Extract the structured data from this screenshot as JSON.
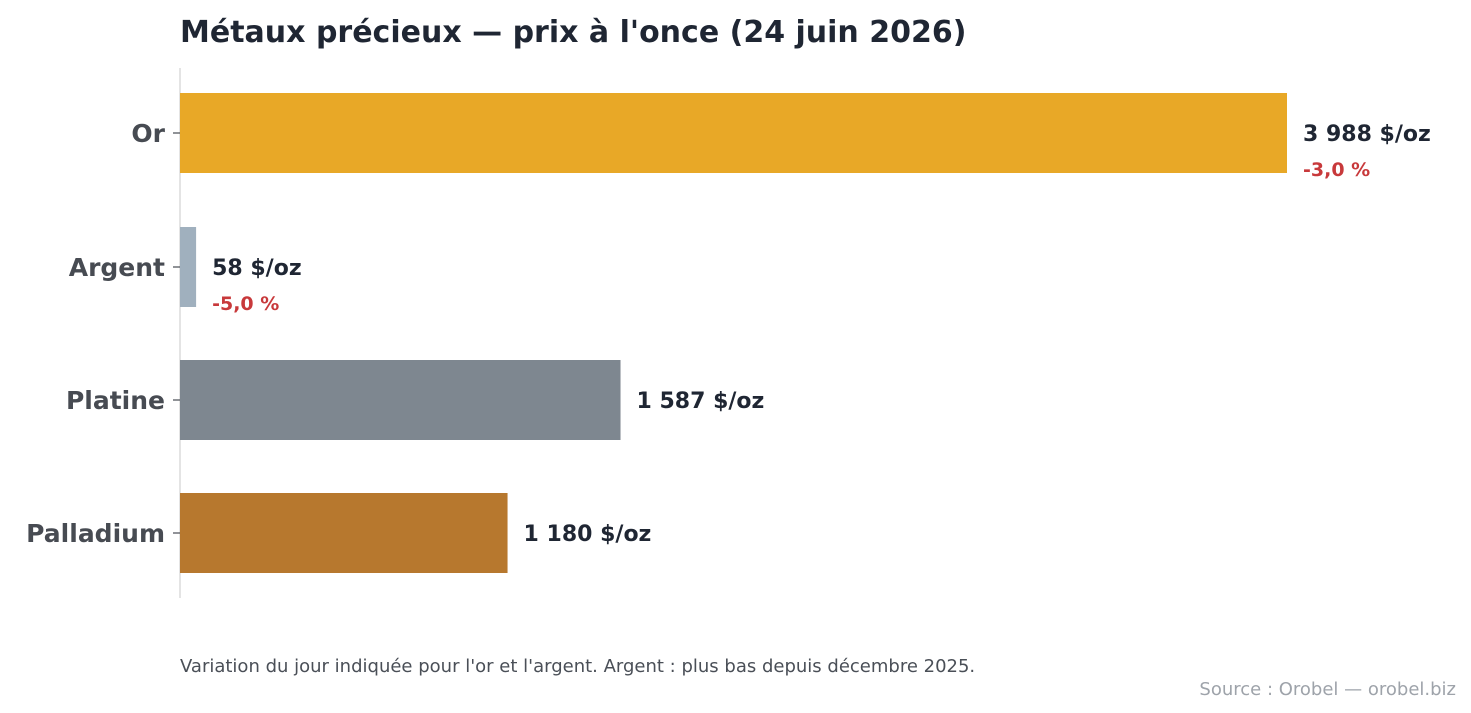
{
  "chart_data": {
    "type": "bar",
    "orientation": "horizontal",
    "title": "Métaux précieux — prix à l'once (24 juin 2026)",
    "unit": "$/oz",
    "xlim": [
      0,
      4250
    ],
    "categories": [
      "Or",
      "Argent",
      "Platine",
      "Palladium"
    ],
    "values": [
      3988,
      58,
      1587,
      1180
    ],
    "value_labels": [
      "3 988 $/oz",
      "58 $/oz",
      "1 587 $/oz",
      "1 180 $/oz"
    ],
    "changes": [
      "-3,0 %",
      "-5,0 %",
      null,
      null
    ],
    "colors": [
      "#e8a827",
      "#a0b0be",
      "#7e8790",
      "#b7782e"
    ],
    "change_color": "#c8393b",
    "grid": false,
    "legend": "none",
    "footnote": "Variation du jour indiquée pour l'or et l'argent. Argent : plus bas depuis décembre 2025.",
    "source": "Source : Orobel — orobel.biz"
  }
}
